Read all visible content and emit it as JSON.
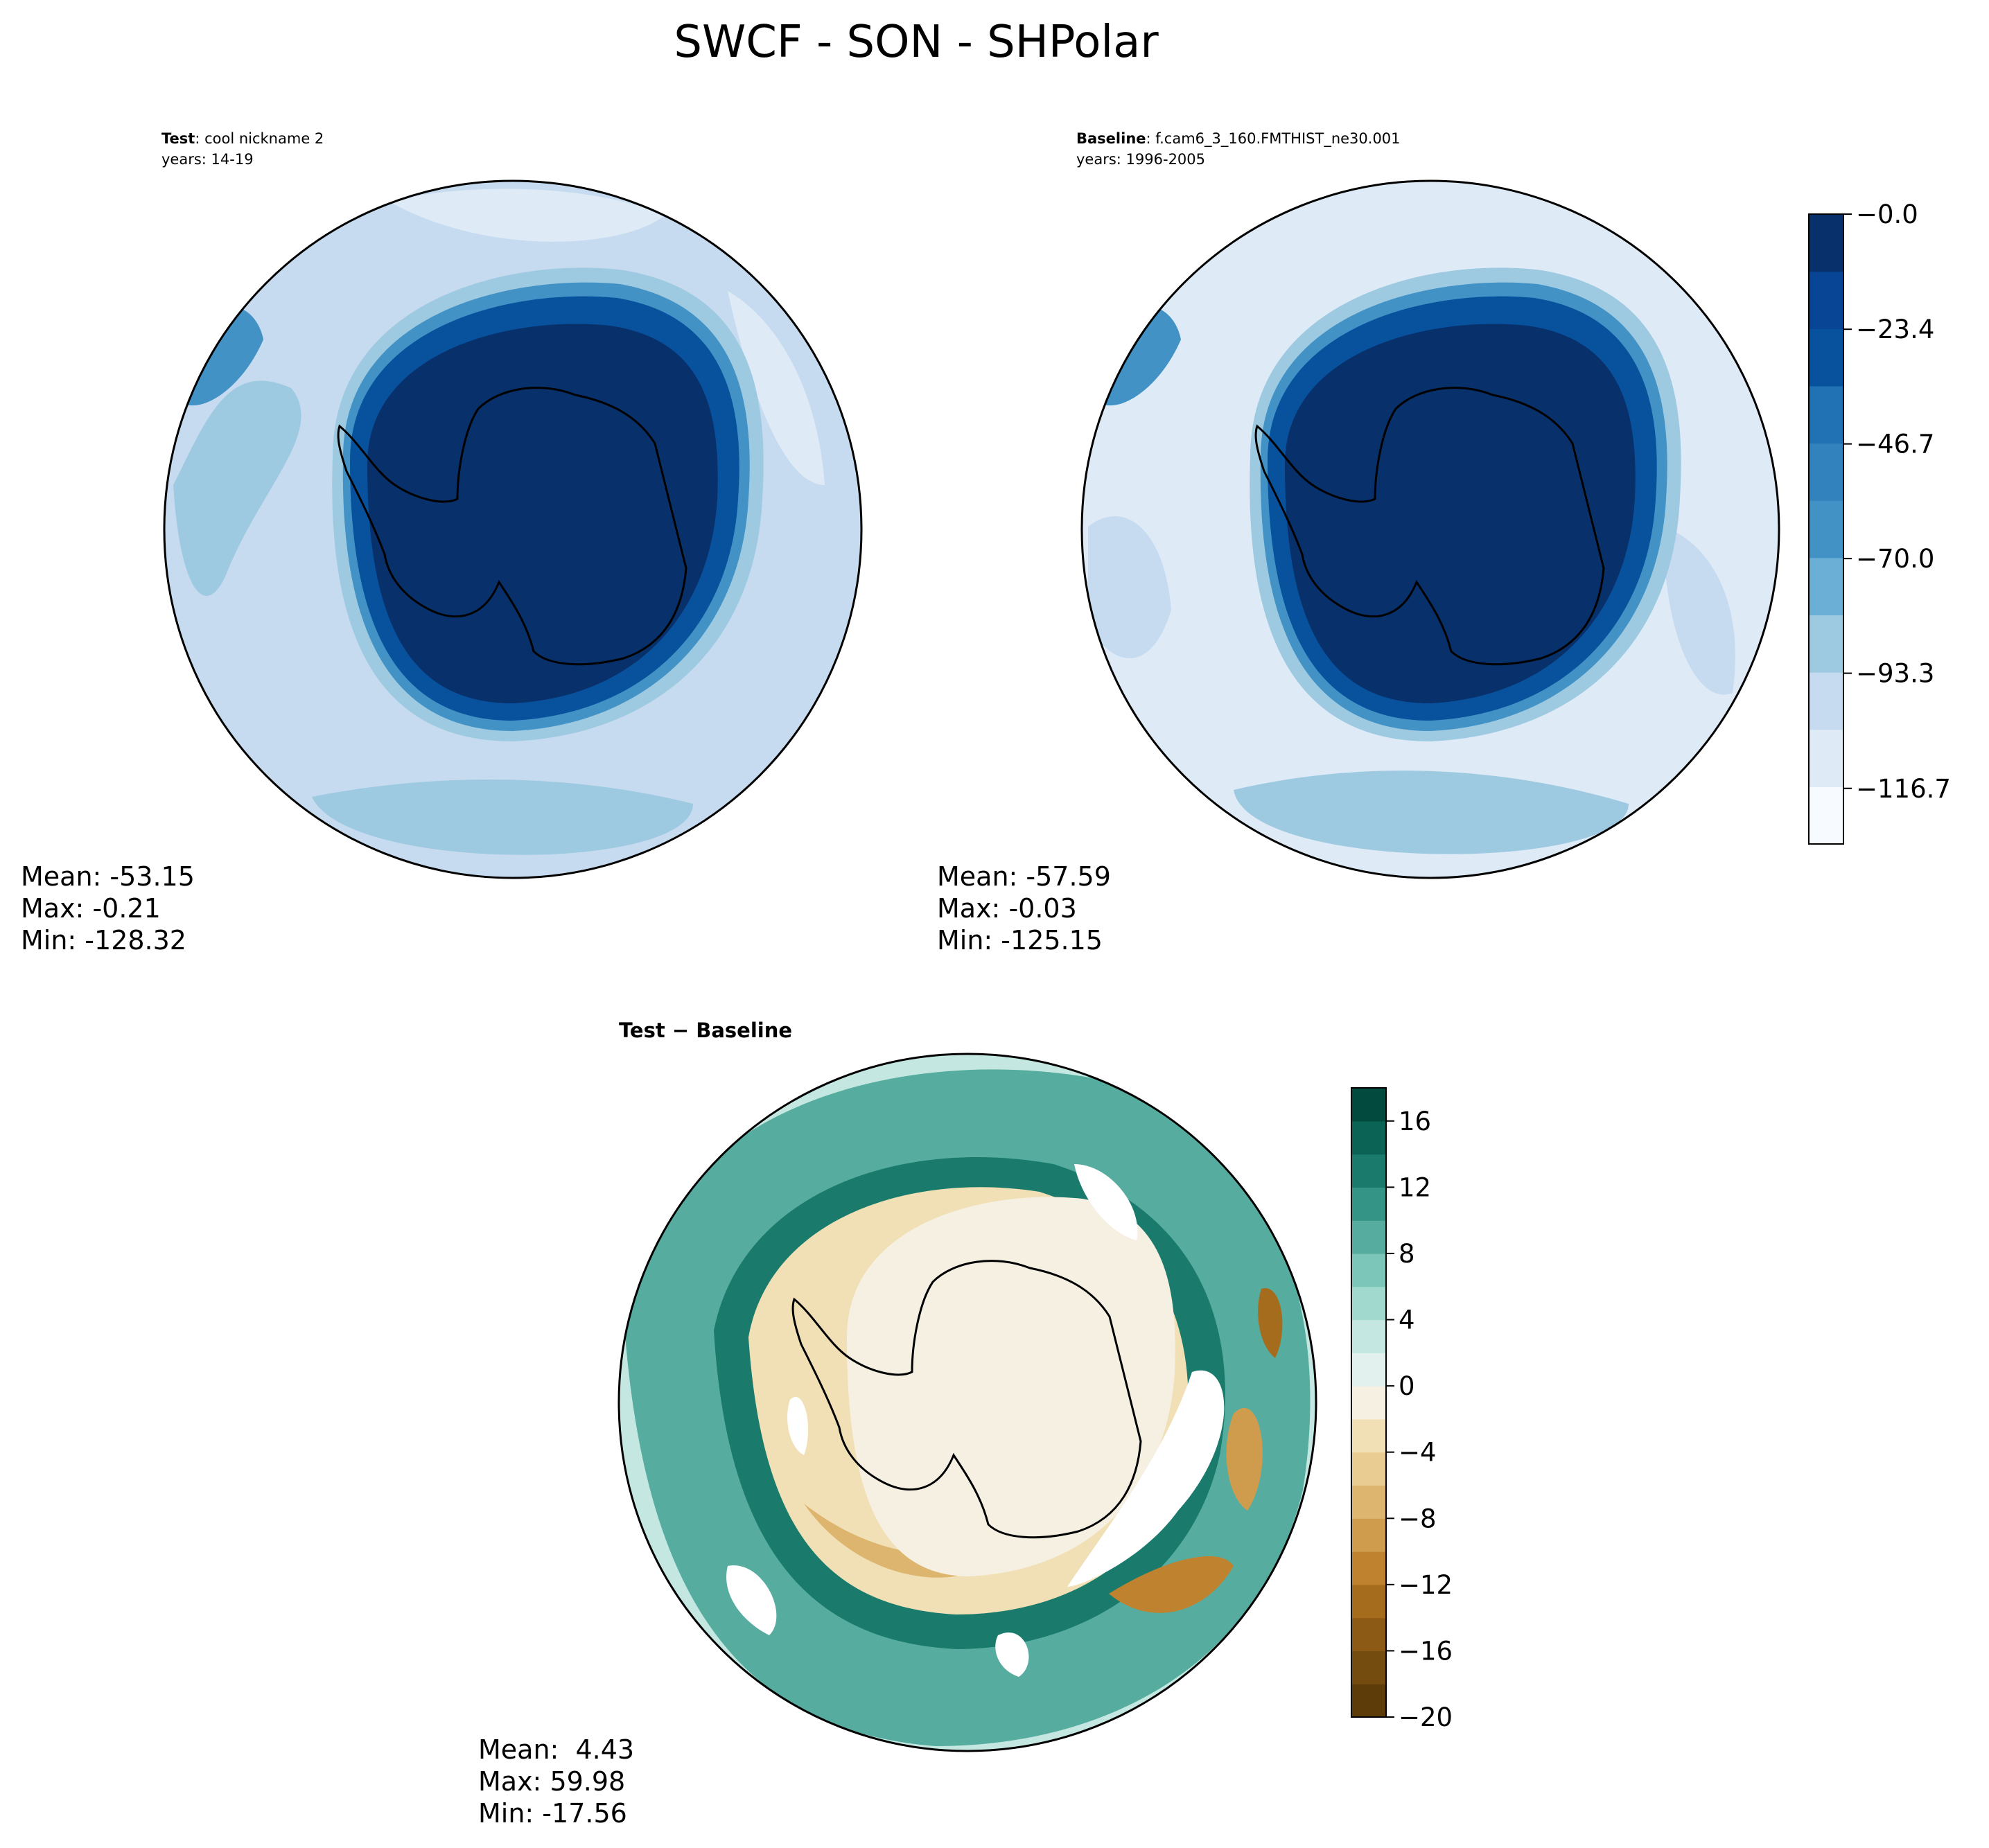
{
  "figure": {
    "title": "SWCF - SON - SHPolar"
  },
  "chart_data": [
    {
      "type": "heatmap",
      "projection": "south-polar-stereographic",
      "panel": "test",
      "label_bold": "Test",
      "label_rest": ": cool nickname 2",
      "years": "years: 14-19",
      "stats": {
        "mean": "Mean: -53.15",
        "max": "Max: -0.21",
        "min": "Min: -128.32"
      },
      "colormap": "Blues_r",
      "field": {
        "polar_cap_value": -1,
        "ring_peak_value": -45,
        "ocean_value": -88,
        "outer_value": -76
      }
    },
    {
      "type": "heatmap",
      "projection": "south-polar-stereographic",
      "panel": "baseline",
      "label_bold": "Baseline",
      "label_rest": ": f.cam6_3_160.FMTHIST_ne30.001",
      "years": "years: 1996-2005",
      "stats": {
        "mean": "Mean: -57.59",
        "max": "Max: -0.03",
        "min": "Min: -125.15"
      },
      "colormap": "Blues_r",
      "colorbar": {
        "range": [
          -128.0,
          0.0
        ],
        "levels": 11,
        "ticks": [
          -116.7,
          -93.3,
          -70.0,
          -46.7,
          -23.4,
          -0.0
        ],
        "tick_labels": [
          "−116.7",
          "−93.3",
          "−70.0",
          "−46.7",
          "−23.4",
          "−0.0"
        ],
        "colors": [
          "#f7fbff",
          "#deebf7",
          "#c6dbef",
          "#9ecae1",
          "#6baed6",
          "#4292c6",
          "#3182bd",
          "#2171b5",
          "#08519c",
          "#084594",
          "#08306b"
        ]
      },
      "field": {
        "polar_cap_value": -1,
        "ring_peak_value": -45,
        "ocean_value": -93,
        "outer_value": -80
      }
    },
    {
      "type": "heatmap",
      "projection": "south-polar-stereographic",
      "panel": "difference",
      "label": "Test − Baseline",
      "stats": {
        "mean": "Mean:  4.43",
        "max": "Max: 59.98",
        "min": "Min: -17.56"
      },
      "colormap": "BrBG",
      "colorbar": {
        "range": [
          -20,
          18
        ],
        "ticks": [
          -20,
          -16,
          -12,
          -8,
          -4,
          0,
          4,
          8,
          12,
          16
        ],
        "tick_labels": [
          "−20",
          "−16",
          "−12",
          "−8",
          "−4",
          "0",
          "4",
          "8",
          "12",
          "16"
        ],
        "levels": [
          -20,
          -18,
          -16,
          -14,
          -12,
          -10,
          -8,
          -6,
          -4,
          -2,
          0,
          2,
          4,
          6,
          8,
          10,
          12,
          14,
          16,
          18
        ],
        "colors": [
          "#5e3c0a",
          "#754c0f",
          "#8c5a14",
          "#a66c1e",
          "#bf822f",
          "#cf9c4d",
          "#ddb56e",
          "#e8cc92",
          "#f1e0b5",
          "#f5f0e1",
          "#e3f1ee",
          "#c4e8e1",
          "#a2d9cf",
          "#7cc6b9",
          "#56ad9f",
          "#349587",
          "#1a7b6d",
          "#0b6355",
          "#014a3d"
        ]
      },
      "field": {
        "polar_cap_value": -1,
        "coastal_ring_value": 11,
        "mid_ring_value": -6,
        "outer_ring_value": 12
      }
    }
  ]
}
